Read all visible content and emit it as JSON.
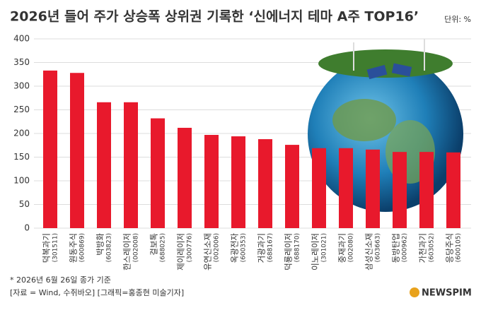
{
  "chart_data": {
    "type": "bar",
    "title": "2026년 들어 주가 상승폭 상위권 기록한 ‘신에너지 테마 A주 TOP16’",
    "unit": "단위: %",
    "categories": [
      "덕복과기",
      "원동주식",
      "박방화",
      "한스레이저",
      "걸보톡",
      "제이레이저",
      "유연신소재",
      "옥광전자",
      "거광과기",
      "덕룡레이저",
      "이노레이저",
      "중재과기",
      "삼성신소재",
      "동방탄업",
      "가천과기",
      "응당주식"
    ],
    "codes": [
      "(301511)",
      "(600869)",
      "(603823)",
      "(002008)",
      "(688025)",
      "(300776)",
      "(002006)",
      "(600353)",
      "(688167)",
      "(688170)",
      "(301021)",
      "(002080)",
      "(603663)",
      "(000962)",
      "(603052)",
      "(600105)"
    ],
    "values": [
      333,
      328,
      266,
      266,
      232,
      212,
      197,
      194,
      188,
      176,
      169,
      169,
      166,
      161,
      161,
      160
    ],
    "color": "#e8192c",
    "ylim": [
      0,
      400
    ],
    "yticks": [
      0,
      50,
      100,
      150,
      200,
      250,
      300,
      350,
      400
    ],
    "grid": true,
    "notes": [
      "* 2026년 6월 26일 종가 기준",
      "[자료 = Wind, 수쥐바오] [그래픽=홍종현 미술기자]"
    ],
    "logo": "NEWSPIM"
  }
}
